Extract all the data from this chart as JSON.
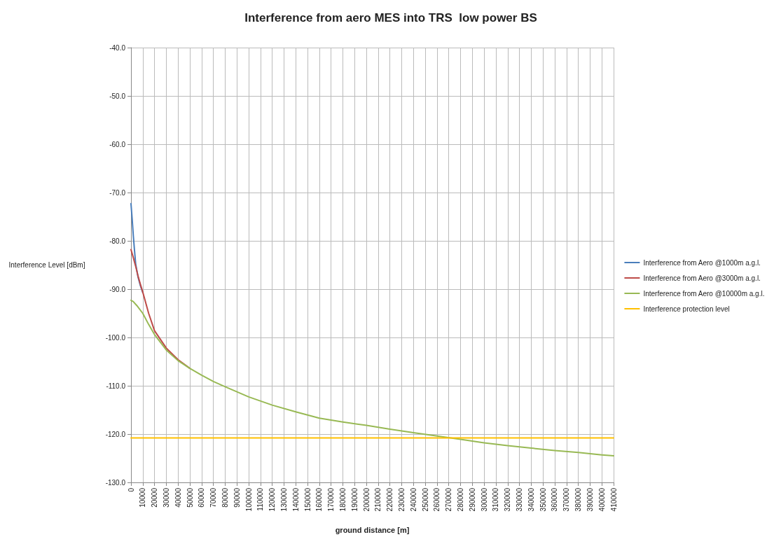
{
  "chart_data": {
    "type": "line",
    "title": "Interference from aero MES into TRS  low power BS",
    "xlabel": "ground distance [m]",
    "ylabel": "Interference Level [dBm]",
    "xlim": [
      0,
      410000
    ],
    "xticks": [
      0,
      10000,
      20000,
      30000,
      40000,
      50000,
      60000,
      70000,
      80000,
      90000,
      100000,
      110000,
      120000,
      130000,
      140000,
      150000,
      160000,
      170000,
      180000,
      190000,
      200000,
      210000,
      220000,
      230000,
      240000,
      250000,
      260000,
      270000,
      280000,
      290000,
      300000,
      310000,
      320000,
      330000,
      340000,
      350000,
      360000,
      370000,
      380000,
      390000,
      400000,
      410000
    ],
    "ylim": [
      -130,
      -40
    ],
    "yticks": [
      {
        "value": -130,
        "label": "-130.0"
      },
      {
        "value": -120,
        "label": "-120.0"
      },
      {
        "value": -110,
        "label": "-110.0"
      },
      {
        "value": -100,
        "label": "-100.0"
      },
      {
        "value": -90,
        "label": "-90.0"
      },
      {
        "value": -80,
        "label": "-80.0"
      },
      {
        "value": -70,
        "label": "-70.0"
      },
      {
        "value": -60,
        "label": "-60.0"
      },
      {
        "value": -50,
        "label": "-50.0"
      },
      {
        "value": -40,
        "label": "-40.0"
      }
    ],
    "grid": true,
    "legend": "right",
    "marker": "none",
    "line_style": "solid",
    "series": [
      {
        "name": "Interference from Aero @1000m a.g.l.",
        "color": "#4a7ebb",
        "x": [
          0,
          1000,
          2000,
          3000,
          4000,
          6000,
          8000,
          10000
        ],
        "values": [
          -72.3,
          -75.5,
          -79,
          -82,
          -84.8,
          -87.5,
          -89.3,
          -90.7
        ]
      },
      {
        "name": "Interference from Aero @3000m a.g.l.",
        "color": "#be4b48",
        "x": [
          0,
          2000,
          4000,
          6000,
          8000,
          10000,
          15000,
          20000,
          30000,
          40000,
          50000
        ],
        "values": [
          -81.8,
          -83.5,
          -85.3,
          -87.3,
          -89,
          -90.6,
          -95,
          -98.6,
          -102.2,
          -104.6,
          -106.4
        ]
      },
      {
        "name": "Interference from Aero @10000m a.g.l.",
        "color": "#98b954",
        "x": [
          0,
          2000,
          5000,
          10000,
          15000,
          20000,
          30000,
          40000,
          50000,
          60000,
          70000,
          80000,
          100000,
          120000,
          140000,
          160000,
          180000,
          200000,
          220000,
          240000,
          260000,
          280000,
          300000,
          320000,
          340000,
          360000,
          380000,
          400000,
          410000
        ],
        "values": [
          -92.3,
          -92.6,
          -93.4,
          -95,
          -97.3,
          -99.4,
          -102.6,
          -104.8,
          -106.4,
          -107.8,
          -109.1,
          -110.2,
          -112.3,
          -114,
          -115.4,
          -116.7,
          -117.5,
          -118.2,
          -119,
          -119.7,
          -120.4,
          -121.1,
          -121.8,
          -122.4,
          -122.9,
          -123.4,
          -123.8,
          -124.3,
          -124.5
        ]
      },
      {
        "name": "Interference protection level",
        "color": "#ffc000",
        "x": [
          0,
          410000
        ],
        "values": [
          -120.8,
          -120.8
        ]
      }
    ]
  }
}
